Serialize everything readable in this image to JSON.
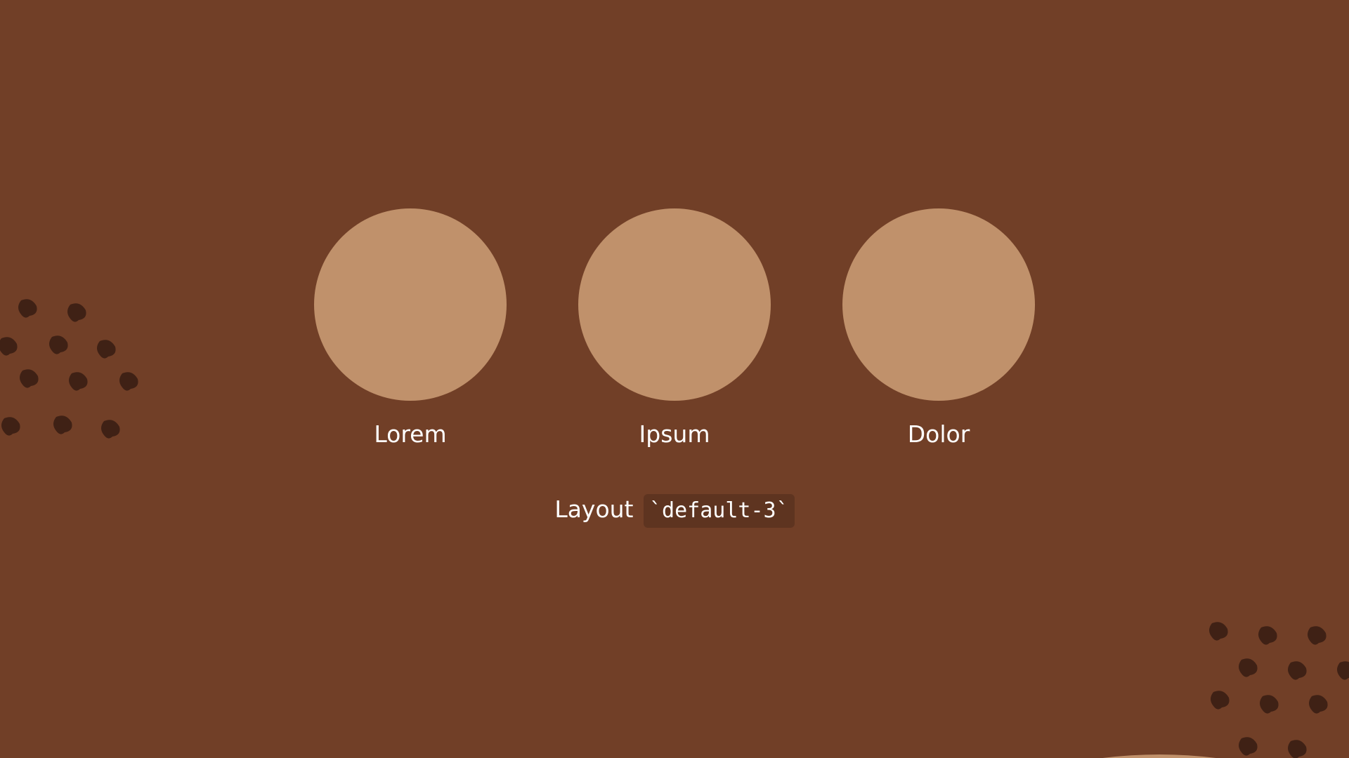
{
  "theme": {
    "background": "#713f27",
    "circle_fill": "#c0916b",
    "decoration_color": "#3f2115",
    "code_background": "#5e3420",
    "text_color": "#ffffff"
  },
  "items": [
    {
      "label": "Lorem"
    },
    {
      "label": "Ipsum"
    },
    {
      "label": "Dolor"
    }
  ],
  "caption": {
    "text": "Layout",
    "code": "`default-3`"
  }
}
